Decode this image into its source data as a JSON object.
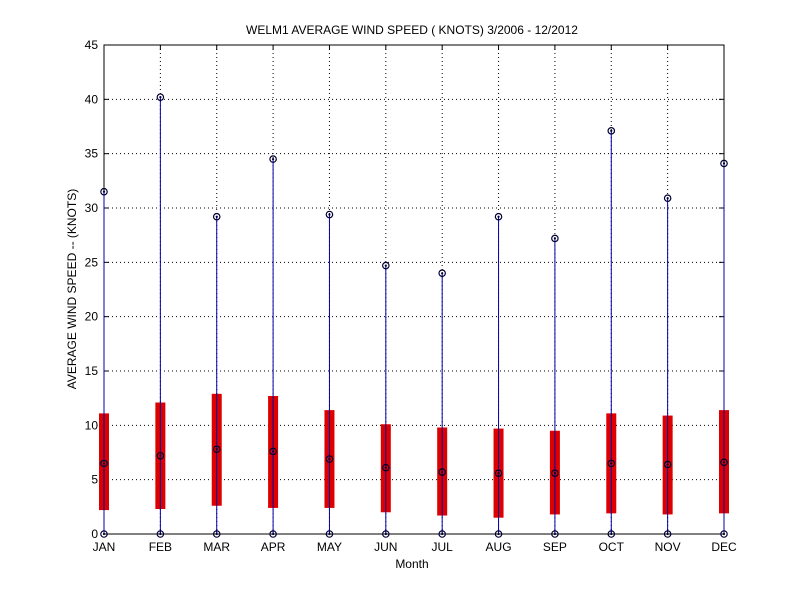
{
  "chart_data": {
    "type": "box",
    "title": "WELM1  AVERAGE WIND SPEED ( KNOTS) 3/2006 - 12/2012",
    "xlabel": "Month",
    "ylabel": "AVERAGE WIND SPEED -- (KNOTS)",
    "ylim": [
      0,
      45
    ],
    "yticks": [
      0,
      5,
      10,
      15,
      20,
      25,
      30,
      35,
      40,
      45
    ],
    "grid": true,
    "categories": [
      "JAN",
      "FEB",
      "MAR",
      "APR",
      "MAY",
      "JUN",
      "JUL",
      "AUG",
      "SEP",
      "OCT",
      "NOV",
      "DEC"
    ],
    "series": [
      {
        "min": [
          0,
          0,
          0,
          0,
          0,
          0,
          0,
          0,
          0,
          0,
          0,
          0
        ],
        "q1": [
          2.2,
          2.3,
          2.6,
          2.4,
          2.4,
          2.0,
          1.7,
          1.5,
          1.8,
          1.9,
          1.8,
          1.9
        ],
        "median": [
          6.5,
          7.2,
          7.8,
          7.6,
          6.9,
          6.1,
          5.7,
          5.6,
          5.6,
          6.5,
          6.4,
          6.6
        ],
        "q3": [
          11.1,
          12.1,
          12.9,
          12.7,
          11.4,
          10.1,
          9.8,
          9.7,
          9.5,
          11.1,
          10.9,
          11.4
        ],
        "max": [
          31.5,
          40.2,
          29.2,
          34.5,
          29.4,
          24.7,
          24.0,
          29.2,
          27.2,
          37.1,
          30.9,
          34.1
        ]
      }
    ],
    "colors": {
      "box": "#dd0000",
      "whisker": "#0000aa",
      "marker": "#000033",
      "grid": "#000000"
    }
  }
}
